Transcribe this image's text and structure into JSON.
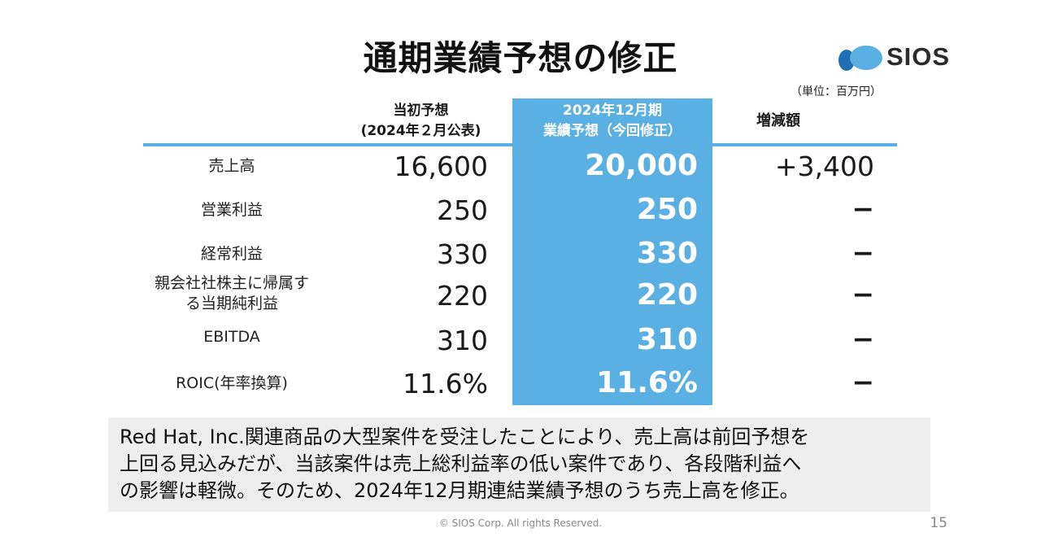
{
  "slide": {
    "title": "通期業績予想の修正",
    "logo_text": "SIOS",
    "unit": "（単位：百万円）"
  },
  "headers": {
    "original_line1": "当初予想",
    "original_line2": "(2024年２月公表)",
    "revised_line1": "2024年12月期",
    "revised_line2": "業績予想（今回修正）",
    "difference": "増減額"
  },
  "rows": [
    {
      "label": "売上高",
      "original": "16,600",
      "revised": "20,000",
      "difference": "+3,400"
    },
    {
      "label": "営業利益",
      "original": "250",
      "revised": "250",
      "difference": "−"
    },
    {
      "label": "経常利益",
      "original": "330",
      "revised": "330",
      "difference": "−"
    },
    {
      "label_line1": "親会社社株主に帰属す",
      "label_line2": "る当期純利益",
      "original": "220",
      "revised": "220",
      "difference": "−"
    },
    {
      "label": "EBITDA",
      "original": "310",
      "revised": "310",
      "difference": "−"
    },
    {
      "label": "ROIC(年率換算)",
      "original": "11.6%",
      "revised": "11.6%",
      "difference": "−"
    }
  ],
  "note": {
    "line1": "Red Hat, Inc.関連商品の大型案件を受注したことにより、売上高は前回予想を",
    "line2": "上回る見込みだが、当該案件は売上総利益率の低い案件であり、各段階利益へ",
    "line3": "の影響は軽微。そのため、2024年12月期連結業績予想のうち売上高を修正。"
  },
  "footer": {
    "copyright": "© SIOS Corp. All rights Reserved.",
    "page_number": "15"
  },
  "colors": {
    "accent": "#5aafe3",
    "note_bg": "#eeeeee"
  }
}
